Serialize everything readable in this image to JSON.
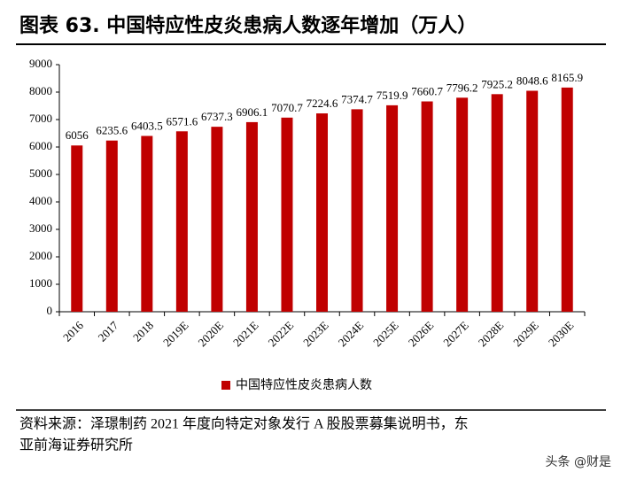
{
  "chart_data": {
    "type": "bar",
    "title": "图表 63. 中国特应性皮炎患病人数逐年增加（万人）",
    "categories": [
      "2016",
      "2017",
      "2018",
      "2019E",
      "2020E",
      "2021E",
      "2022E",
      "2023E",
      "2024E",
      "2025E",
      "2026E",
      "2027E",
      "2028E",
      "2029E",
      "2030E"
    ],
    "series": [
      {
        "name": "中国特应性皮炎患病人数",
        "color": "#c00000",
        "values": [
          6056,
          6235.6,
          6403.5,
          6571.6,
          6737.3,
          6906.1,
          7070.7,
          7224.6,
          7374.7,
          7519.9,
          7660.7,
          7796.2,
          7925.2,
          8048.6,
          8165.9
        ]
      }
    ],
    "ylim": [
      0,
      9000
    ],
    "yticks": [
      0,
      1000,
      2000,
      3000,
      4000,
      5000,
      6000,
      7000,
      8000,
      9000
    ],
    "source": [
      "资料来源：泽璟制药 2021 年度向特定对象发行 A 股股票募集说明书，东",
      "亚前海证券研究所"
    ],
    "watermark": "头条 @财是"
  }
}
